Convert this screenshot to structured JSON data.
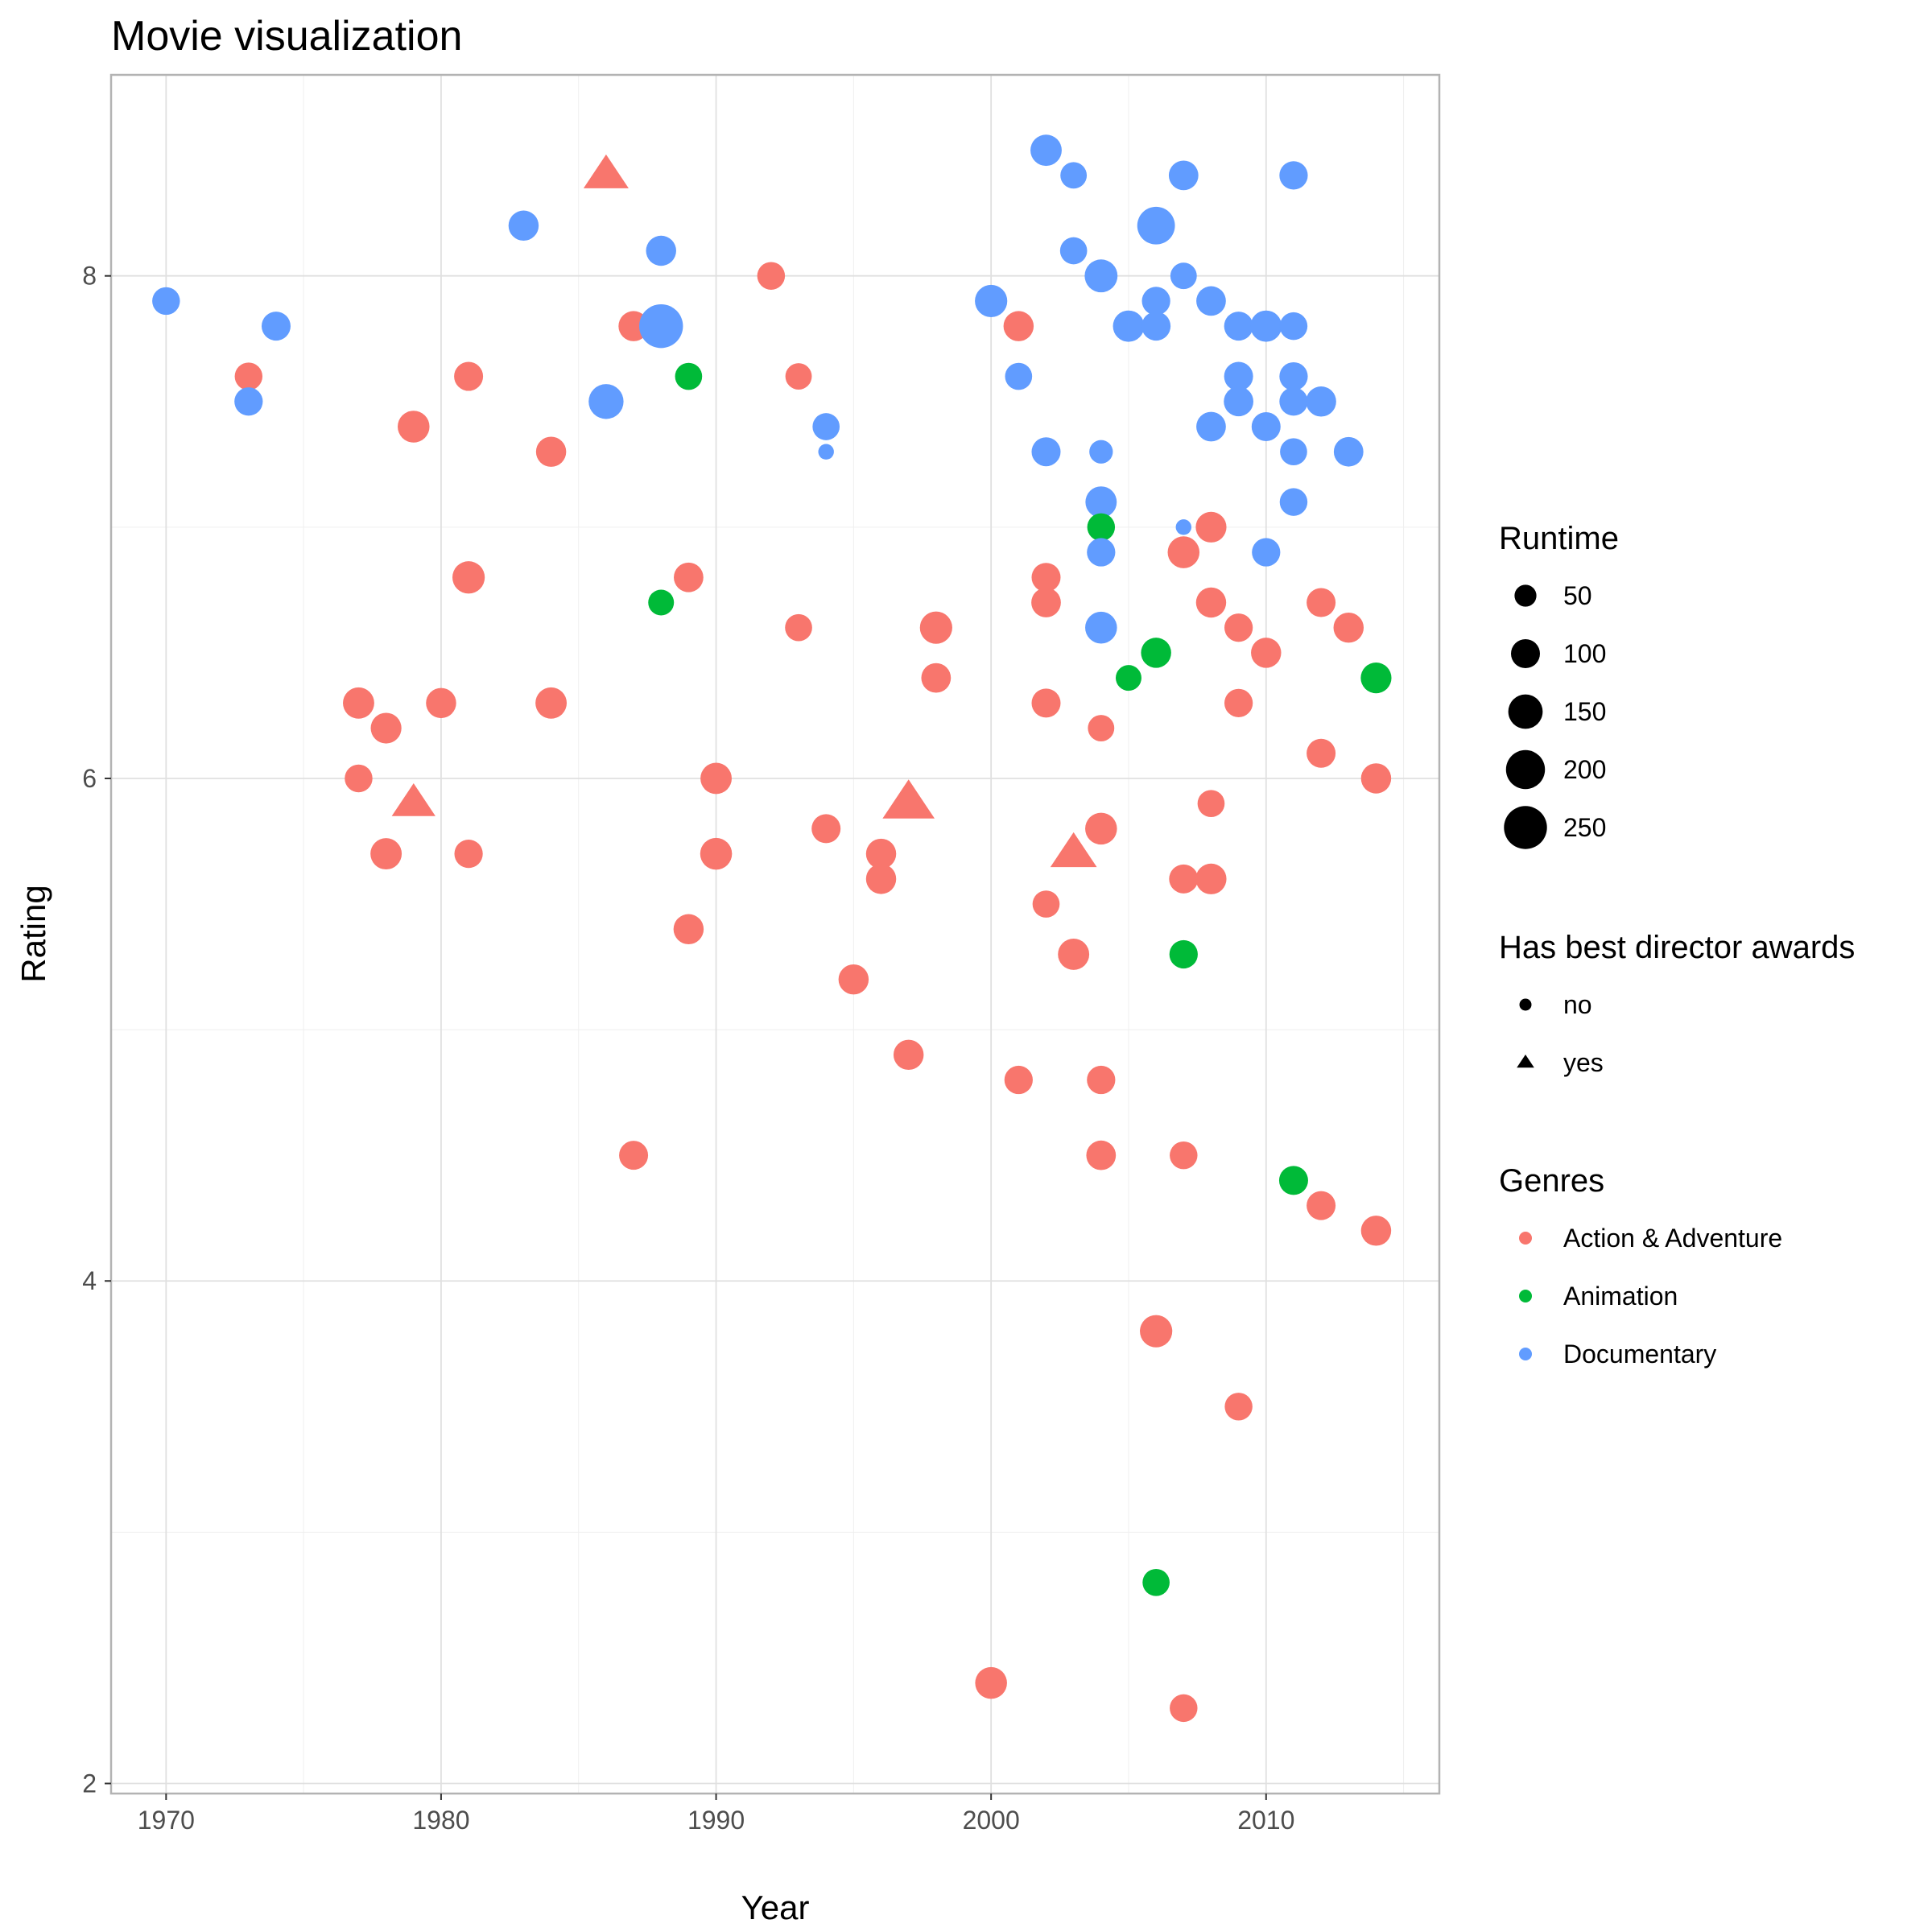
{
  "chart_data": {
    "type": "scatter",
    "title": "Movie visualization",
    "xlabel": "Year",
    "ylabel": "Rating",
    "xlim": [
      1968,
      2016.3
    ],
    "ylim": [
      1.96,
      8.8
    ],
    "x_ticks": [
      1970,
      1980,
      1990,
      2000,
      2010
    ],
    "y_ticks": [
      2,
      4,
      6,
      8
    ],
    "grid": true,
    "legend_placement": "right",
    "legends": {
      "size": {
        "title": "Runtime",
        "items": [
          {
            "label": "50",
            "value": 50
          },
          {
            "label": "100",
            "value": 100
          },
          {
            "label": "150",
            "value": 150
          },
          {
            "label": "200",
            "value": 200
          },
          {
            "label": "250",
            "value": 250
          }
        ]
      },
      "shape": {
        "title": "Has best director awards",
        "items": [
          {
            "label": "no",
            "shape": "circle"
          },
          {
            "label": "yes",
            "shape": "triangle"
          }
        ]
      },
      "color": {
        "title": "Genres",
        "items": [
          {
            "label": "Action & Adventure",
            "color": "#F8766D"
          },
          {
            "label": "Animation",
            "color": "#00BA38"
          },
          {
            "label": "Documentary",
            "color": "#619CFF"
          }
        ]
      }
    },
    "colors": {
      "Action & Adventure": "#F8766D",
      "Animation": "#00BA38",
      "Documentary": "#619CFF"
    },
    "points": [
      {
        "year": 1970,
        "rating": 7.9,
        "genre": "Documentary",
        "runtime": 90,
        "award": "no"
      },
      {
        "year": 1973,
        "rating": 7.6,
        "genre": "Action & Adventure",
        "runtime": 90,
        "award": "no"
      },
      {
        "year": 1973,
        "rating": 7.5,
        "genre": "Documentary",
        "runtime": 95,
        "award": "no"
      },
      {
        "year": 1974,
        "rating": 7.8,
        "genre": "Documentary",
        "runtime": 100,
        "award": "no"
      },
      {
        "year": 1977,
        "rating": 6.3,
        "genre": "Action & Adventure",
        "runtime": 120,
        "award": "no"
      },
      {
        "year": 1977,
        "rating": 6.0,
        "genre": "Action & Adventure",
        "runtime": 90,
        "award": "no"
      },
      {
        "year": 1978,
        "rating": 6.2,
        "genre": "Action & Adventure",
        "runtime": 115,
        "award": "no"
      },
      {
        "year": 1978,
        "rating": 5.7,
        "genre": "Action & Adventure",
        "runtime": 120,
        "award": "no"
      },
      {
        "year": 1979,
        "rating": 7.4,
        "genre": "Action & Adventure",
        "runtime": 125,
        "award": "no"
      },
      {
        "year": 1979,
        "rating": 5.9,
        "genre": "Action & Adventure",
        "runtime": 130,
        "award": "yes"
      },
      {
        "year": 1980,
        "rating": 6.3,
        "genre": "Action & Adventure",
        "runtime": 110,
        "award": "no"
      },
      {
        "year": 1981,
        "rating": 7.6,
        "genre": "Action & Adventure",
        "runtime": 100,
        "award": "no"
      },
      {
        "year": 1981,
        "rating": 6.8,
        "genre": "Action & Adventure",
        "runtime": 130,
        "award": "no"
      },
      {
        "year": 1981,
        "rating": 5.7,
        "genre": "Action & Adventure",
        "runtime": 95,
        "award": "no"
      },
      {
        "year": 1983,
        "rating": 8.2,
        "genre": "Documentary",
        "runtime": 110,
        "award": "no"
      },
      {
        "year": 1984,
        "rating": 7.3,
        "genre": "Action & Adventure",
        "runtime": 110,
        "award": "no"
      },
      {
        "year": 1984,
        "rating": 6.3,
        "genre": "Action & Adventure",
        "runtime": 120,
        "award": "no"
      },
      {
        "year": 1986,
        "rating": 8.4,
        "genre": "Action & Adventure",
        "runtime": 140,
        "award": "yes"
      },
      {
        "year": 1986,
        "rating": 7.5,
        "genre": "Documentary",
        "runtime": 155,
        "award": "no"
      },
      {
        "year": 1987,
        "rating": 7.8,
        "genre": "Action & Adventure",
        "runtime": 110,
        "award": "no"
      },
      {
        "year": 1987,
        "rating": 4.5,
        "genre": "Action & Adventure",
        "runtime": 100,
        "award": "no"
      },
      {
        "year": 1988,
        "rating": 8.1,
        "genre": "Documentary",
        "runtime": 110,
        "award": "no"
      },
      {
        "year": 1988,
        "rating": 7.8,
        "genre": "Documentary",
        "runtime": 260,
        "award": "no"
      },
      {
        "year": 1988,
        "rating": 6.7,
        "genre": "Animation",
        "runtime": 75,
        "award": "no"
      },
      {
        "year": 1989,
        "rating": 7.6,
        "genre": "Animation",
        "runtime": 85,
        "award": "no"
      },
      {
        "year": 1989,
        "rating": 6.8,
        "genre": "Action & Adventure",
        "runtime": 105,
        "award": "no"
      },
      {
        "year": 1989,
        "rating": 5.4,
        "genre": "Action & Adventure",
        "runtime": 110,
        "award": "no"
      },
      {
        "year": 1990,
        "rating": 6.0,
        "genre": "Action & Adventure",
        "runtime": 120,
        "award": "no"
      },
      {
        "year": 1990,
        "rating": 5.7,
        "genre": "Action & Adventure",
        "runtime": 125,
        "award": "no"
      },
      {
        "year": 1992,
        "rating": 8.0,
        "genre": "Action & Adventure",
        "runtime": 90,
        "award": "no"
      },
      {
        "year": 1993,
        "rating": 7.6,
        "genre": "Action & Adventure",
        "runtime": 80,
        "award": "no"
      },
      {
        "year": 1993,
        "rating": 6.6,
        "genre": "Action & Adventure",
        "runtime": 85,
        "award": "no"
      },
      {
        "year": 1994,
        "rating": 7.4,
        "genre": "Documentary",
        "runtime": 85,
        "award": "no"
      },
      {
        "year": 1994,
        "rating": 7.3,
        "genre": "Documentary",
        "runtime": 20,
        "award": "no"
      },
      {
        "year": 1994,
        "rating": 5.8,
        "genre": "Action & Adventure",
        "runtime": 100,
        "award": "no"
      },
      {
        "year": 1995,
        "rating": 5.2,
        "genre": "Action & Adventure",
        "runtime": 110,
        "award": "no"
      },
      {
        "year": 1996,
        "rating": 5.7,
        "genre": "Action & Adventure",
        "runtime": 110,
        "award": "no"
      },
      {
        "year": 1996,
        "rating": 5.6,
        "genre": "Action & Adventure",
        "runtime": 110,
        "award": "no"
      },
      {
        "year": 1997,
        "rating": 5.9,
        "genre": "Action & Adventure",
        "runtime": 195,
        "award": "yes"
      },
      {
        "year": 1997,
        "rating": 4.9,
        "genre": "Action & Adventure",
        "runtime": 110,
        "award": "no"
      },
      {
        "year": 1998,
        "rating": 6.6,
        "genre": "Action & Adventure",
        "runtime": 130,
        "award": "no"
      },
      {
        "year": 1998,
        "rating": 6.4,
        "genre": "Action & Adventure",
        "runtime": 105,
        "award": "no"
      },
      {
        "year": 2000,
        "rating": 7.9,
        "genre": "Documentary",
        "runtime": 130,
        "award": "no"
      },
      {
        "year": 2000,
        "rating": 2.4,
        "genre": "Action & Adventure",
        "runtime": 125,
        "award": "no"
      },
      {
        "year": 2001,
        "rating": 7.8,
        "genre": "Action & Adventure",
        "runtime": 110,
        "award": "no"
      },
      {
        "year": 2001,
        "rating": 7.6,
        "genre": "Documentary",
        "runtime": 85,
        "award": "no"
      },
      {
        "year": 2001,
        "rating": 4.8,
        "genre": "Action & Adventure",
        "runtime": 95,
        "award": "no"
      },
      {
        "year": 2002,
        "rating": 8.5,
        "genre": "Documentary",
        "runtime": 120,
        "award": "no"
      },
      {
        "year": 2002,
        "rating": 7.3,
        "genre": "Documentary",
        "runtime": 100,
        "award": "no"
      },
      {
        "year": 2002,
        "rating": 6.8,
        "genre": "Action & Adventure",
        "runtime": 100,
        "award": "no"
      },
      {
        "year": 2002,
        "rating": 6.7,
        "genre": "Action & Adventure",
        "runtime": 105,
        "award": "no"
      },
      {
        "year": 2002,
        "rating": 6.3,
        "genre": "Action & Adventure",
        "runtime": 100,
        "award": "no"
      },
      {
        "year": 2002,
        "rating": 5.5,
        "genre": "Action & Adventure",
        "runtime": 85,
        "award": "no"
      },
      {
        "year": 2003,
        "rating": 8.4,
        "genre": "Documentary",
        "runtime": 80,
        "award": "no"
      },
      {
        "year": 2003,
        "rating": 8.1,
        "genre": "Documentary",
        "runtime": 85,
        "award": "no"
      },
      {
        "year": 2003,
        "rating": 5.7,
        "genre": "Action & Adventure",
        "runtime": 150,
        "award": "yes"
      },
      {
        "year": 2003,
        "rating": 5.3,
        "genre": "Action & Adventure",
        "runtime": 120,
        "award": "no"
      },
      {
        "year": 2004,
        "rating": 8.0,
        "genre": "Documentary",
        "runtime": 135,
        "award": "no"
      },
      {
        "year": 2004,
        "rating": 7.3,
        "genre": "Documentary",
        "runtime": 60,
        "award": "no"
      },
      {
        "year": 2004,
        "rating": 7.1,
        "genre": "Documentary",
        "runtime": 120,
        "award": "no"
      },
      {
        "year": 2004,
        "rating": 7.0,
        "genre": "Animation",
        "runtime": 90,
        "award": "no"
      },
      {
        "year": 2004,
        "rating": 6.9,
        "genre": "Documentary",
        "runtime": 95,
        "award": "no"
      },
      {
        "year": 2004,
        "rating": 6.6,
        "genre": "Documentary",
        "runtime": 125,
        "award": "no"
      },
      {
        "year": 2004,
        "rating": 6.2,
        "genre": "Action & Adventure",
        "runtime": 80,
        "award": "no"
      },
      {
        "year": 2004,
        "rating": 5.8,
        "genre": "Action & Adventure",
        "runtime": 125,
        "award": "no"
      },
      {
        "year": 2004,
        "rating": 4.8,
        "genre": "Action & Adventure",
        "runtime": 95,
        "award": "no"
      },
      {
        "year": 2004,
        "rating": 4.5,
        "genre": "Action & Adventure",
        "runtime": 105,
        "award": "no"
      },
      {
        "year": 2005,
        "rating": 7.8,
        "genre": "Documentary",
        "runtime": 120,
        "award": "no"
      },
      {
        "year": 2005,
        "rating": 6.4,
        "genre": "Animation",
        "runtime": 75,
        "award": "no"
      },
      {
        "year": 2006,
        "rating": 8.2,
        "genre": "Documentary",
        "runtime": 185,
        "award": "no"
      },
      {
        "year": 2006,
        "rating": 7.9,
        "genre": "Documentary",
        "runtime": 95,
        "award": "no"
      },
      {
        "year": 2006,
        "rating": 7.8,
        "genre": "Documentary",
        "runtime": 100,
        "award": "no"
      },
      {
        "year": 2006,
        "rating": 6.5,
        "genre": "Animation",
        "runtime": 110,
        "award": "no"
      },
      {
        "year": 2006,
        "rating": 3.8,
        "genre": "Action & Adventure",
        "runtime": 130,
        "award": "no"
      },
      {
        "year": 2006,
        "rating": 2.8,
        "genre": "Animation",
        "runtime": 85,
        "award": "no"
      },
      {
        "year": 2007,
        "rating": 8.4,
        "genre": "Documentary",
        "runtime": 105,
        "award": "no"
      },
      {
        "year": 2007,
        "rating": 8.0,
        "genre": "Documentary",
        "runtime": 80,
        "award": "no"
      },
      {
        "year": 2007,
        "rating": 7.0,
        "genre": "Documentary",
        "runtime": 20,
        "award": "no"
      },
      {
        "year": 2007,
        "rating": 6.9,
        "genre": "Action & Adventure",
        "runtime": 125,
        "award": "no"
      },
      {
        "year": 2007,
        "rating": 5.6,
        "genre": "Action & Adventure",
        "runtime": 100,
        "award": "no"
      },
      {
        "year": 2007,
        "rating": 5.3,
        "genre": "Animation",
        "runtime": 95,
        "award": "no"
      },
      {
        "year": 2007,
        "rating": 4.5,
        "genre": "Action & Adventure",
        "runtime": 90,
        "award": "no"
      },
      {
        "year": 2007,
        "rating": 2.3,
        "genre": "Action & Adventure",
        "runtime": 90,
        "award": "no"
      },
      {
        "year": 2008,
        "rating": 7.9,
        "genre": "Documentary",
        "runtime": 105,
        "award": "no"
      },
      {
        "year": 2008,
        "rating": 7.4,
        "genre": "Documentary",
        "runtime": 105,
        "award": "no"
      },
      {
        "year": 2008,
        "rating": 7.0,
        "genre": "Action & Adventure",
        "runtime": 115,
        "award": "no"
      },
      {
        "year": 2008,
        "rating": 6.7,
        "genre": "Action & Adventure",
        "runtime": 110,
        "award": "no"
      },
      {
        "year": 2008,
        "rating": 5.9,
        "genre": "Action & Adventure",
        "runtime": 85,
        "award": "no"
      },
      {
        "year": 2008,
        "rating": 5.6,
        "genre": "Action & Adventure",
        "runtime": 115,
        "award": "no"
      },
      {
        "year": 2009,
        "rating": 7.8,
        "genre": "Documentary",
        "runtime": 100,
        "award": "no"
      },
      {
        "year": 2009,
        "rating": 7.6,
        "genre": "Documentary",
        "runtime": 100,
        "award": "no"
      },
      {
        "year": 2009,
        "rating": 7.5,
        "genre": "Documentary",
        "runtime": 105,
        "award": "no"
      },
      {
        "year": 2009,
        "rating": 6.6,
        "genre": "Action & Adventure",
        "runtime": 95,
        "award": "no"
      },
      {
        "year": 2009,
        "rating": 6.3,
        "genre": "Action & Adventure",
        "runtime": 95,
        "award": "no"
      },
      {
        "year": 2009,
        "rating": 3.5,
        "genre": "Action & Adventure",
        "runtime": 90,
        "award": "no"
      },
      {
        "year": 2010,
        "rating": 7.8,
        "genre": "Documentary",
        "runtime": 120,
        "award": "no"
      },
      {
        "year": 2010,
        "rating": 7.4,
        "genre": "Documentary",
        "runtime": 100,
        "award": "no"
      },
      {
        "year": 2010,
        "rating": 6.9,
        "genre": "Documentary",
        "runtime": 95,
        "award": "no"
      },
      {
        "year": 2010,
        "rating": 6.5,
        "genre": "Action & Adventure",
        "runtime": 110,
        "award": "no"
      },
      {
        "year": 2011,
        "rating": 8.4,
        "genre": "Documentary",
        "runtime": 95,
        "award": "no"
      },
      {
        "year": 2011,
        "rating": 7.8,
        "genre": "Documentary",
        "runtime": 90,
        "award": "no"
      },
      {
        "year": 2011,
        "rating": 7.6,
        "genre": "Documentary",
        "runtime": 95,
        "award": "no"
      },
      {
        "year": 2011,
        "rating": 7.5,
        "genre": "Documentary",
        "runtime": 95,
        "award": "no"
      },
      {
        "year": 2011,
        "rating": 7.3,
        "genre": "Documentary",
        "runtime": 85,
        "award": "no"
      },
      {
        "year": 2011,
        "rating": 7.1,
        "genre": "Documentary",
        "runtime": 90,
        "award": "no"
      },
      {
        "year": 2011,
        "rating": 4.4,
        "genre": "Animation",
        "runtime": 100,
        "award": "no"
      },
      {
        "year": 2012,
        "rating": 7.5,
        "genre": "Documentary",
        "runtime": 110,
        "award": "no"
      },
      {
        "year": 2012,
        "rating": 6.7,
        "genre": "Action & Adventure",
        "runtime": 100,
        "award": "no"
      },
      {
        "year": 2012,
        "rating": 6.1,
        "genre": "Action & Adventure",
        "runtime": 100,
        "award": "no"
      },
      {
        "year": 2012,
        "rating": 4.3,
        "genre": "Action & Adventure",
        "runtime": 100,
        "award": "no"
      },
      {
        "year": 2013,
        "rating": 7.3,
        "genre": "Documentary",
        "runtime": 105,
        "award": "no"
      },
      {
        "year": 2013,
        "rating": 6.6,
        "genre": "Action & Adventure",
        "runtime": 110,
        "award": "no"
      },
      {
        "year": 2014,
        "rating": 6.4,
        "genre": "Animation",
        "runtime": 115,
        "award": "no"
      },
      {
        "year": 2014,
        "rating": 6.0,
        "genre": "Action & Adventure",
        "runtime": 110,
        "award": "no"
      },
      {
        "year": 2014,
        "rating": 4.2,
        "genre": "Action & Adventure",
        "runtime": 110,
        "award": "no"
      }
    ]
  }
}
